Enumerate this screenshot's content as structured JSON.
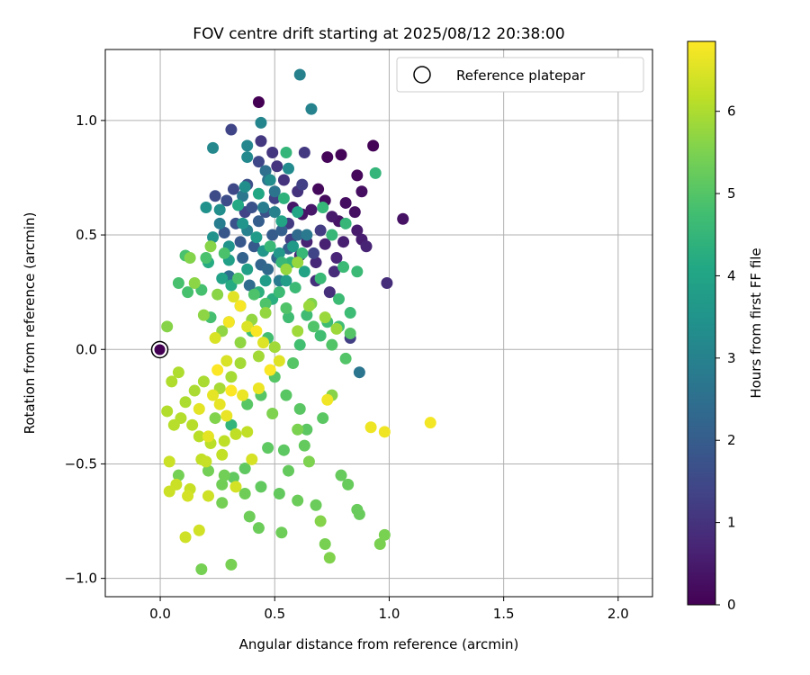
{
  "chart_data": {
    "type": "scatter",
    "title": "FOV centre drift starting at 2025/08/12 20:38:00",
    "xlabel": "Angular distance from reference (arcmin)",
    "ylabel": "Rotation from reference (arcmin)",
    "xlim": [
      -0.24,
      2.15
    ],
    "ylim": [
      -1.08,
      1.31
    ],
    "xticks": [
      0.0,
      0.5,
      1.0,
      1.5,
      2.0
    ],
    "xtick_labels": [
      "0.0",
      "0.5",
      "1.0",
      "1.5",
      "2.0"
    ],
    "yticks": [
      -1.0,
      -0.5,
      0.0,
      0.5,
      1.0
    ],
    "ytick_labels": [
      "−1.0",
      "−0.5",
      "0.0",
      "0.5",
      "1.0"
    ],
    "grid": true,
    "legend": {
      "position": "top-right",
      "entries": [
        "Reference platepar"
      ]
    },
    "reference_point": {
      "x": 0.0,
      "y": 0.0,
      "label": "Reference platepar"
    },
    "colorbar": {
      "label": "Hours from first FF file",
      "colormap": "viridis",
      "range": [
        0,
        6.85
      ],
      "ticks": [
        0,
        1,
        2,
        3,
        4,
        5,
        6
      ],
      "tick_labels": [
        "0",
        "1",
        "2",
        "3",
        "4",
        "5",
        "6"
      ],
      "colors": [
        "#440154",
        "#482475",
        "#414487",
        "#355f8d",
        "#2a788e",
        "#21918c",
        "#22a884",
        "#44bf70",
        "#7ad151",
        "#bddf26",
        "#fde725"
      ]
    },
    "series": [
      {
        "hours_range": [
          0.0,
          1.4
        ],
        "points": [
          [
            0.43,
            1.08
          ],
          [
            0.93,
            0.89
          ],
          [
            0.79,
            0.85
          ],
          [
            0.73,
            0.84
          ],
          [
            0.86,
            0.76
          ],
          [
            0.69,
            0.7
          ],
          [
            0.72,
            0.65
          ],
          [
            0.81,
            0.64
          ],
          [
            0.88,
            0.69
          ],
          [
            0.85,
            0.6
          ],
          [
            1.06,
            0.57
          ],
          [
            0.78,
            0.56
          ],
          [
            0.62,
            0.59
          ],
          [
            0.58,
            0.62
          ],
          [
            0.66,
            0.61
          ],
          [
            0.75,
            0.58
          ],
          [
            0.86,
            0.52
          ],
          [
            0.88,
            0.48
          ],
          [
            0.8,
            0.47
          ],
          [
            0.72,
            0.46
          ],
          [
            0.64,
            0.47
          ],
          [
            0.9,
            0.45
          ],
          [
            0.77,
            0.4
          ],
          [
            0.68,
            0.38
          ],
          [
            0.61,
            0.41
          ],
          [
            0.55,
            0.36
          ],
          [
            0.76,
            0.34
          ],
          [
            0.99,
            0.29
          ],
          [
            0.74,
            0.25
          ],
          [
            0.68,
            0.3
          ],
          [
            0.6,
            0.69
          ],
          [
            0.54,
            0.74
          ],
          [
            0.51,
            0.8
          ],
          [
            0.49,
            0.86
          ],
          [
            0.44,
            0.91
          ],
          [
            0.63,
            0.86
          ],
          [
            0.56,
            0.55
          ],
          [
            0.7,
            0.52
          ],
          [
            0.57,
            0.48
          ],
          [
            0.83,
            0.05
          ],
          [
            0.62,
            0.72
          ],
          [
            0.5,
            0.66
          ],
          [
            0.37,
            0.6
          ],
          [
            0.67,
            0.42
          ]
        ]
      },
      {
        "hours_range": [
          1.4,
          3.0
        ],
        "points": [
          [
            0.31,
            0.96
          ],
          [
            0.43,
            0.82
          ],
          [
            0.32,
            0.7
          ],
          [
            0.24,
            0.67
          ],
          [
            0.29,
            0.65
          ],
          [
            0.38,
            0.72
          ],
          [
            0.4,
            0.62
          ],
          [
            0.46,
            0.6
          ],
          [
            0.33,
            0.55
          ],
          [
            0.28,
            0.51
          ],
          [
            0.35,
            0.47
          ],
          [
            0.41,
            0.45
          ],
          [
            0.49,
            0.5
          ],
          [
            0.43,
            0.56
          ],
          [
            0.53,
            0.52
          ],
          [
            0.56,
            0.44
          ],
          [
            0.36,
            0.4
          ],
          [
            0.44,
            0.37
          ],
          [
            0.51,
            0.4
          ],
          [
            0.47,
            0.35
          ],
          [
            0.6,
            0.5
          ],
          [
            0.39,
            0.28
          ],
          [
            0.3,
            0.32
          ],
          [
            0.46,
            0.78
          ],
          [
            0.47,
            0.74
          ],
          [
            0.5,
            0.69
          ],
          [
            0.87,
            -0.1
          ],
          [
            0.36,
            0.67
          ],
          [
            0.64,
            0.5
          ],
          [
            0.52,
            0.3
          ],
          [
            0.45,
            0.62
          ],
          [
            0.26,
            0.55
          ],
          [
            0.38,
            0.52
          ],
          [
            0.5,
            0.6
          ]
        ]
      },
      {
        "hours_range": [
          3.0,
          4.5
        ],
        "points": [
          [
            0.61,
            1.2
          ],
          [
            0.66,
            1.05
          ],
          [
            0.44,
            0.99
          ],
          [
            0.38,
            0.89
          ],
          [
            0.23,
            0.88
          ],
          [
            0.38,
            0.84
          ],
          [
            0.56,
            0.79
          ],
          [
            0.48,
            0.74
          ],
          [
            0.37,
            0.71
          ],
          [
            0.26,
            0.61
          ],
          [
            0.2,
            0.62
          ],
          [
            0.23,
            0.49
          ],
          [
            0.3,
            0.45
          ],
          [
            0.36,
            0.55
          ],
          [
            0.45,
            0.43
          ],
          [
            0.52,
            0.42
          ],
          [
            0.58,
            0.45
          ],
          [
            0.42,
            0.49
          ],
          [
            0.46,
            0.3
          ],
          [
            0.55,
            0.3
          ],
          [
            0.38,
            0.35
          ],
          [
            0.3,
            0.39
          ],
          [
            0.27,
            0.31
          ],
          [
            0.63,
            0.34
          ],
          [
            0.53,
            0.56
          ],
          [
            0.6,
            0.6
          ],
          [
            0.43,
            0.68
          ],
          [
            0.34,
            0.63
          ],
          [
            0.31,
            0.28
          ],
          [
            0.21,
            0.38
          ],
          [
            0.35,
            0.19
          ],
          [
            0.49,
            0.22
          ],
          [
            0.43,
            0.25
          ],
          [
            0.54,
            0.66
          ],
          [
            0.57,
            0.38
          ],
          [
            0.31,
            -0.33
          ],
          [
            0.94,
            0.77
          ]
        ]
      },
      {
        "hours_range": [
          4.5,
          5.6
        ],
        "points": [
          [
            0.55,
            0.86
          ],
          [
            0.71,
            0.62
          ],
          [
            0.81,
            0.55
          ],
          [
            0.75,
            0.5
          ],
          [
            0.62,
            0.42
          ],
          [
            0.53,
            0.38
          ],
          [
            0.48,
            0.45
          ],
          [
            0.7,
            0.31
          ],
          [
            0.8,
            0.36
          ],
          [
            0.86,
            0.34
          ],
          [
            0.59,
            0.27
          ],
          [
            0.52,
            0.25
          ],
          [
            0.78,
            0.22
          ],
          [
            0.83,
            0.16
          ],
          [
            0.64,
            0.15
          ],
          [
            0.73,
            0.12
          ],
          [
            0.56,
            0.14
          ],
          [
            0.78,
            0.1
          ],
          [
            0.7,
            0.06
          ],
          [
            0.61,
            0.02
          ],
          [
            0.47,
            0.05
          ],
          [
            0.4,
            0.08
          ],
          [
            0.3,
            0.12
          ],
          [
            0.22,
            0.14
          ],
          [
            0.18,
            0.26
          ],
          [
            0.12,
            0.25
          ],
          [
            0.08,
            0.29
          ],
          [
            0.11,
            0.41
          ],
          [
            0.2,
            0.4
          ],
          [
            0.28,
            0.42
          ],
          [
            0.34,
            0.31
          ],
          [
            0.41,
            0.24
          ],
          [
            0.46,
            0.2
          ],
          [
            0.55,
            0.18
          ],
          [
            0.67,
            0.1
          ],
          [
            0.75,
            0.02
          ],
          [
            0.81,
            -0.04
          ],
          [
            0.83,
            0.07
          ],
          [
            0.58,
            -0.06
          ],
          [
            0.5,
            -0.12
          ],
          [
            0.44,
            -0.2
          ],
          [
            0.38,
            -0.24
          ],
          [
            0.55,
            -0.2
          ],
          [
            0.61,
            -0.26
          ],
          [
            0.71,
            -0.3
          ],
          [
            0.64,
            -0.35
          ],
          [
            0.54,
            -0.44
          ],
          [
            0.47,
            -0.43
          ],
          [
            0.37,
            -0.52
          ],
          [
            0.32,
            -0.56
          ],
          [
            0.44,
            -0.6
          ],
          [
            0.52,
            -0.63
          ],
          [
            0.63,
            -0.42
          ],
          [
            0.56,
            -0.53
          ],
          [
            0.79,
            -0.55
          ],
          [
            0.82,
            -0.59
          ],
          [
            0.86,
            -0.7
          ],
          [
            0.87,
            -0.72
          ],
          [
            0.68,
            -0.68
          ],
          [
            0.6,
            -0.66
          ],
          [
            0.43,
            -0.78
          ],
          [
            0.39,
            -0.73
          ],
          [
            0.53,
            -0.8
          ],
          [
            0.37,
            -0.63
          ],
          [
            0.27,
            -0.59
          ],
          [
            0.28,
            -0.55
          ],
          [
            0.21,
            -0.53
          ],
          [
            0.08,
            -0.55
          ],
          [
            0.27,
            -0.67
          ],
          [
            0.18,
            -0.96
          ],
          [
            0.31,
            -0.94
          ],
          [
            0.72,
            -0.85
          ],
          [
            0.98,
            -0.81
          ],
          [
            0.96,
            -0.85
          ],
          [
            0.6,
            -0.35
          ],
          [
            0.65,
            -0.49
          ],
          [
            0.49,
            -0.28
          ],
          [
            0.66,
            0.2
          ],
          [
            0.74,
            -0.91
          ],
          [
            0.24,
            -0.3
          ],
          [
            0.13,
            0.4
          ],
          [
            0.7,
            -0.75
          ],
          [
            0.75,
            -0.2
          ]
        ]
      },
      {
        "hours_range": [
          5.6,
          6.85
        ],
        "points": [
          [
            0.03,
            0.1
          ],
          [
            0.22,
            0.45
          ],
          [
            0.25,
            0.24
          ],
          [
            0.15,
            0.29
          ],
          [
            0.19,
            0.15
          ],
          [
            0.27,
            0.08
          ],
          [
            0.35,
            0.03
          ],
          [
            0.4,
            0.13
          ],
          [
            0.46,
            0.16
          ],
          [
            0.55,
            0.35
          ],
          [
            0.6,
            0.38
          ],
          [
            0.65,
            0.19
          ],
          [
            0.72,
            0.14
          ],
          [
            0.77,
            0.09
          ],
          [
            0.6,
            0.08
          ],
          [
            0.5,
            0.01
          ],
          [
            0.43,
            -0.03
          ],
          [
            0.35,
            -0.06
          ],
          [
            0.31,
            -0.12
          ],
          [
            0.26,
            -0.17
          ],
          [
            0.19,
            -0.14
          ],
          [
            0.15,
            -0.18
          ],
          [
            0.11,
            -0.23
          ],
          [
            0.08,
            -0.1
          ],
          [
            0.05,
            -0.14
          ],
          [
            0.03,
            -0.27
          ],
          [
            0.09,
            -0.3
          ],
          [
            0.14,
            -0.33
          ],
          [
            0.06,
            -0.33
          ],
          [
            0.17,
            -0.38
          ],
          [
            0.22,
            -0.41
          ],
          [
            0.28,
            -0.4
          ],
          [
            0.33,
            -0.37
          ],
          [
            0.38,
            -0.36
          ],
          [
            0.27,
            -0.46
          ],
          [
            0.18,
            -0.48
          ],
          [
            0.2,
            -0.49
          ],
          [
            0.13,
            -0.61
          ],
          [
            0.07,
            -0.59
          ],
          [
            0.04,
            -0.49
          ],
          [
            0.04,
            -0.62
          ],
          [
            0.21,
            -0.64
          ],
          [
            0.11,
            -0.82
          ],
          [
            0.17,
            -0.79
          ],
          [
            0.12,
            -0.64
          ],
          [
            0.33,
            -0.6
          ],
          [
            0.4,
            -0.48
          ],
          [
            0.29,
            -0.05
          ],
          [
            0.24,
            0.05
          ],
          [
            0.38,
            0.1
          ],
          [
            0.45,
            0.03
          ],
          [
            0.52,
            -0.05
          ],
          [
            0.32,
            0.23
          ],
          [
            0.17,
            -0.26
          ],
          [
            0.21,
            -0.38
          ],
          [
            0.23,
            -0.2
          ],
          [
            0.26,
            -0.24
          ],
          [
            0.29,
            -0.29
          ],
          [
            0.36,
            -0.2
          ],
          [
            0.43,
            -0.17
          ],
          [
            0.92,
            -0.34
          ],
          [
            0.98,
            -0.36
          ],
          [
            0.73,
            -0.22
          ],
          [
            1.18,
            -0.32
          ],
          [
            0.3,
            0.12
          ],
          [
            0.35,
            0.19
          ],
          [
            0.42,
            0.08
          ],
          [
            0.48,
            -0.09
          ],
          [
            0.25,
            -0.09
          ],
          [
            0.31,
            -0.18
          ]
        ]
      }
    ]
  }
}
